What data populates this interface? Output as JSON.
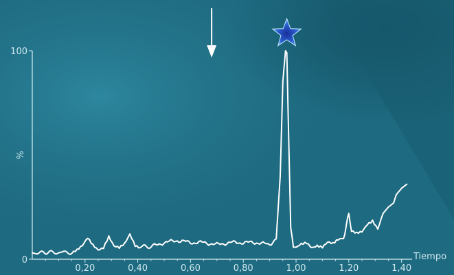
{
  "colors": {
    "background": "#1e6a80",
    "background_light": "#2f8aa0",
    "background_dark": "#124d60",
    "axis": "#d8eef4",
    "line": "#ffffff",
    "arrow": "#ffffff",
    "star": "#2a5fd0",
    "star_edge": "#7fd0ff"
  },
  "icons": {
    "annotation_arrow": "down-arrow-icon",
    "peak_marker": "star-icon"
  },
  "chart_data": {
    "type": "line",
    "title": "",
    "xlabel": "Tiempo",
    "ylabel": "%",
    "xlim": [
      0.0,
      1.44
    ],
    "ylim": [
      0,
      100
    ],
    "x_ticks": [
      0.2,
      0.4,
      0.6,
      0.8,
      1.0,
      1.2,
      1.4
    ],
    "x_tick_labels": [
      "0,20",
      "0,40",
      "0,60",
      "0,80",
      "1,00",
      "1,20",
      "1,40"
    ],
    "y_ticks": [
      0,
      100
    ],
    "y_tick_labels": [
      "0",
      "100"
    ],
    "grid": false,
    "legend": "none",
    "annotations": [
      {
        "type": "arrow-down",
        "x": 0.68
      },
      {
        "type": "star",
        "x": 0.965
      }
    ],
    "series": [
      {
        "x": [
          0.0,
          0.03,
          0.06,
          0.09,
          0.12,
          0.15,
          0.17,
          0.19,
          0.21,
          0.23,
          0.25,
          0.27,
          0.29,
          0.31,
          0.33,
          0.35,
          0.37,
          0.39,
          0.41,
          0.45,
          0.5,
          0.55,
          0.6,
          0.65,
          0.7,
          0.75,
          0.8,
          0.85,
          0.9,
          0.925,
          0.94,
          0.95,
          0.96,
          0.965,
          0.97,
          0.98,
          0.99,
          1.0,
          1.02,
          1.04,
          1.06,
          1.08,
          1.1,
          1.12,
          1.14,
          1.16,
          1.18,
          1.19,
          1.2,
          1.21,
          1.23,
          1.25,
          1.27,
          1.29,
          1.31,
          1.33,
          1.35,
          1.37,
          1.38,
          1.4,
          1.42
        ],
        "y": [
          3,
          3,
          3.5,
          3,
          3.5,
          3,
          4,
          6,
          10,
          7,
          5,
          6,
          11,
          6,
          5,
          7,
          12,
          7,
          6,
          6,
          8,
          9,
          8,
          8,
          7,
          8,
          8,
          8,
          7,
          10,
          40,
          85,
          100,
          99,
          70,
          15,
          6,
          5,
          7,
          8,
          6,
          7,
          6,
          8,
          7,
          9,
          10,
          16,
          22,
          13,
          12,
          13,
          17,
          19,
          15,
          22,
          25,
          27,
          31,
          34,
          36
        ]
      }
    ]
  }
}
